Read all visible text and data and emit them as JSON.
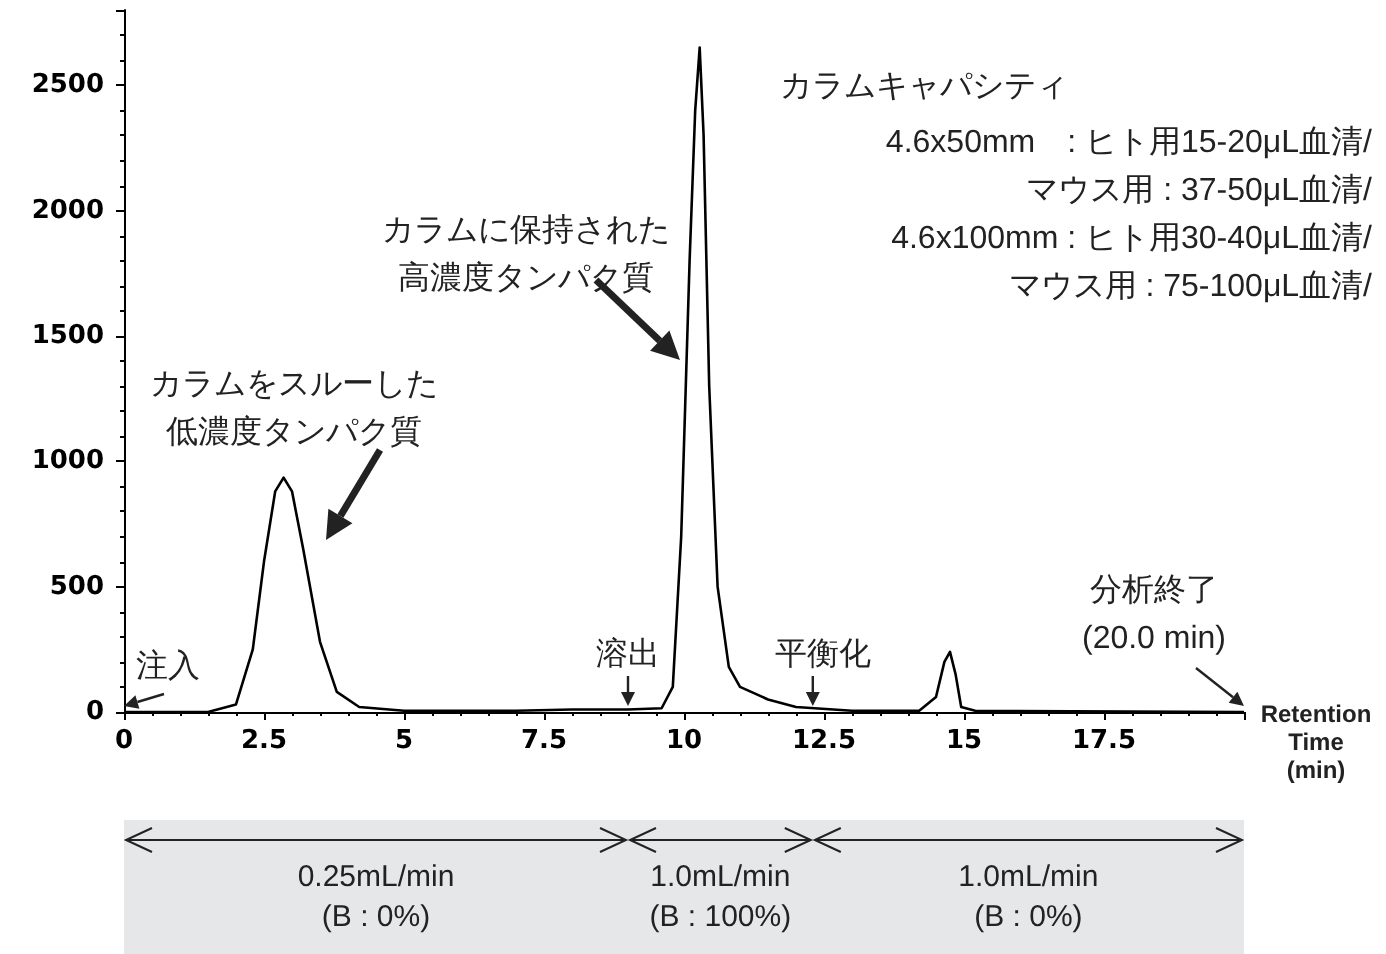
{
  "chart_data": {
    "type": "line",
    "xlabel": "Retention Time (min)",
    "color": "#000000",
    "marker": "none",
    "x": [
      0,
      1.5,
      2.0,
      2.3,
      2.5,
      2.7,
      2.85,
      3.0,
      3.2,
      3.5,
      3.8,
      4.2,
      5,
      7,
      8,
      9,
      9.6,
      9.8,
      9.95,
      10.1,
      10.2,
      10.28,
      10.35,
      10.45,
      10.6,
      10.8,
      11,
      11.5,
      12,
      13,
      14.2,
      14.5,
      14.65,
      14.75,
      14.85,
      14.95,
      15.2,
      20
    ],
    "values": [
      0,
      0,
      30,
      250,
      600,
      880,
      935,
      880,
      650,
      280,
      80,
      20,
      5,
      5,
      10,
      10,
      15,
      100,
      700,
      1800,
      2400,
      2650,
      2300,
      1300,
      500,
      180,
      100,
      50,
      20,
      5,
      5,
      60,
      200,
      240,
      150,
      20,
      5,
      0
    ],
    "xlim": [
      0,
      20
    ],
    "xticks": [
      0,
      2.5,
      5,
      7.5,
      10,
      12.5,
      15,
      17.5
    ],
    "ylim": [
      0,
      2800
    ],
    "yticks": [
      0,
      500,
      1000,
      1500,
      2000,
      2500
    ],
    "annotations": [
      {
        "text": "注入",
        "x": 0,
        "y": 0
      },
      "カラムをスルーした低濃度タンパク質",
      "カラムに保持された高濃度タンパク質",
      {
        "text": "溶出",
        "x": 9.0,
        "y": 0
      },
      {
        "text": "平衡化",
        "x": 12.3,
        "y": 0
      },
      {
        "text": "分析終了\n(20.0 min)",
        "x": 20,
        "y": 0
      },
      "カラムキャパシティ",
      "4.6x50mm　:  ヒト用15-20μL血清/",
      "マウス用 : 37-50μL血清/",
      "4.6x100mm :  ヒト用30-40μL血清/",
      "マウス用 : 75-100μL血清/",
      "0.25mL/min\n(B : 0%)",
      "1.0mL/min\n(B : 100%)",
      "1.0mL/min\n(B : 0%)"
    ]
  }
}
